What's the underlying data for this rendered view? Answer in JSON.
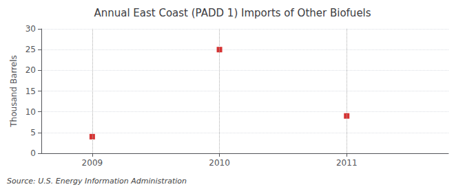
{
  "chart_data": {
    "type": "scatter",
    "title": "Annual East Coast (PADD 1) Imports of Other Biofuels",
    "ylabel": "Thousand Barrels",
    "source": "Source: U.S. Energy Information Administration",
    "x": [
      2009,
      2010,
      2011
    ],
    "values": [
      4,
      25,
      9
    ],
    "color": "#cc0000",
    "marker": "square",
    "xlim": [
      2008.6,
      2011.8
    ],
    "xticks": [
      2009,
      2010,
      2011
    ],
    "ylim": [
      0,
      30
    ],
    "yticks": [
      0,
      5,
      10,
      15,
      20,
      25,
      30
    ],
    "grid": true
  }
}
